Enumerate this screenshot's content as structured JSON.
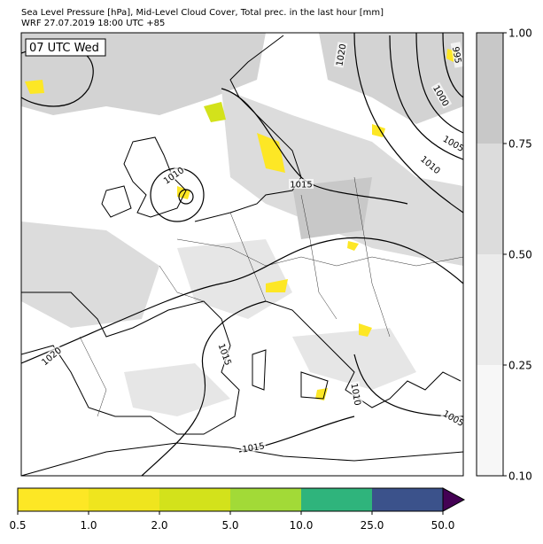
{
  "header": {
    "title": "Sea Level Pressure [hPa], Mid-Level Cloud Cover, Total prec. in the last hour [mm]",
    "subtitle": "WRF 27.07.2019 18:00 UTC +85"
  },
  "map": {
    "time_label": "07 UTC Wed",
    "isobar_labels": [
      1020,
      995,
      1000,
      1005,
      1010,
      1010,
      1015,
      1020,
      1015,
      1010,
      1005,
      1015
    ]
  },
  "cloud_colorbar": {
    "ticks": [
      {
        "value": 0.1,
        "label": "0.10"
      },
      {
        "value": 0.25,
        "label": "0.25"
      },
      {
        "value": 0.5,
        "label": "0.50"
      },
      {
        "value": 0.75,
        "label": "0.75"
      },
      {
        "value": 1,
        "label": "1.00"
      }
    ],
    "colors": [
      "#f7f7f7",
      "#ebebeb",
      "#dcdcdc",
      "#c8c8c8"
    ]
  },
  "precip_colorbar": {
    "ticks": [
      0.5,
      {
        "value": 1,
        "label": "1.0"
      },
      {
        "value": 2,
        "label": "2.0"
      },
      {
        "value": 5,
        "label": "5.0"
      },
      {
        "value": 10,
        "label": "10.0"
      },
      {
        "value": 25,
        "label": "25.0"
      },
      {
        "value": 50,
        "label": "50.0"
      }
    ],
    "colors": [
      "#fde725",
      "#efe51e",
      "#d3e21b",
      "#a2da37",
      "#2fb47c",
      "#3b528b"
    ],
    "extend_color": "#440154"
  }
}
